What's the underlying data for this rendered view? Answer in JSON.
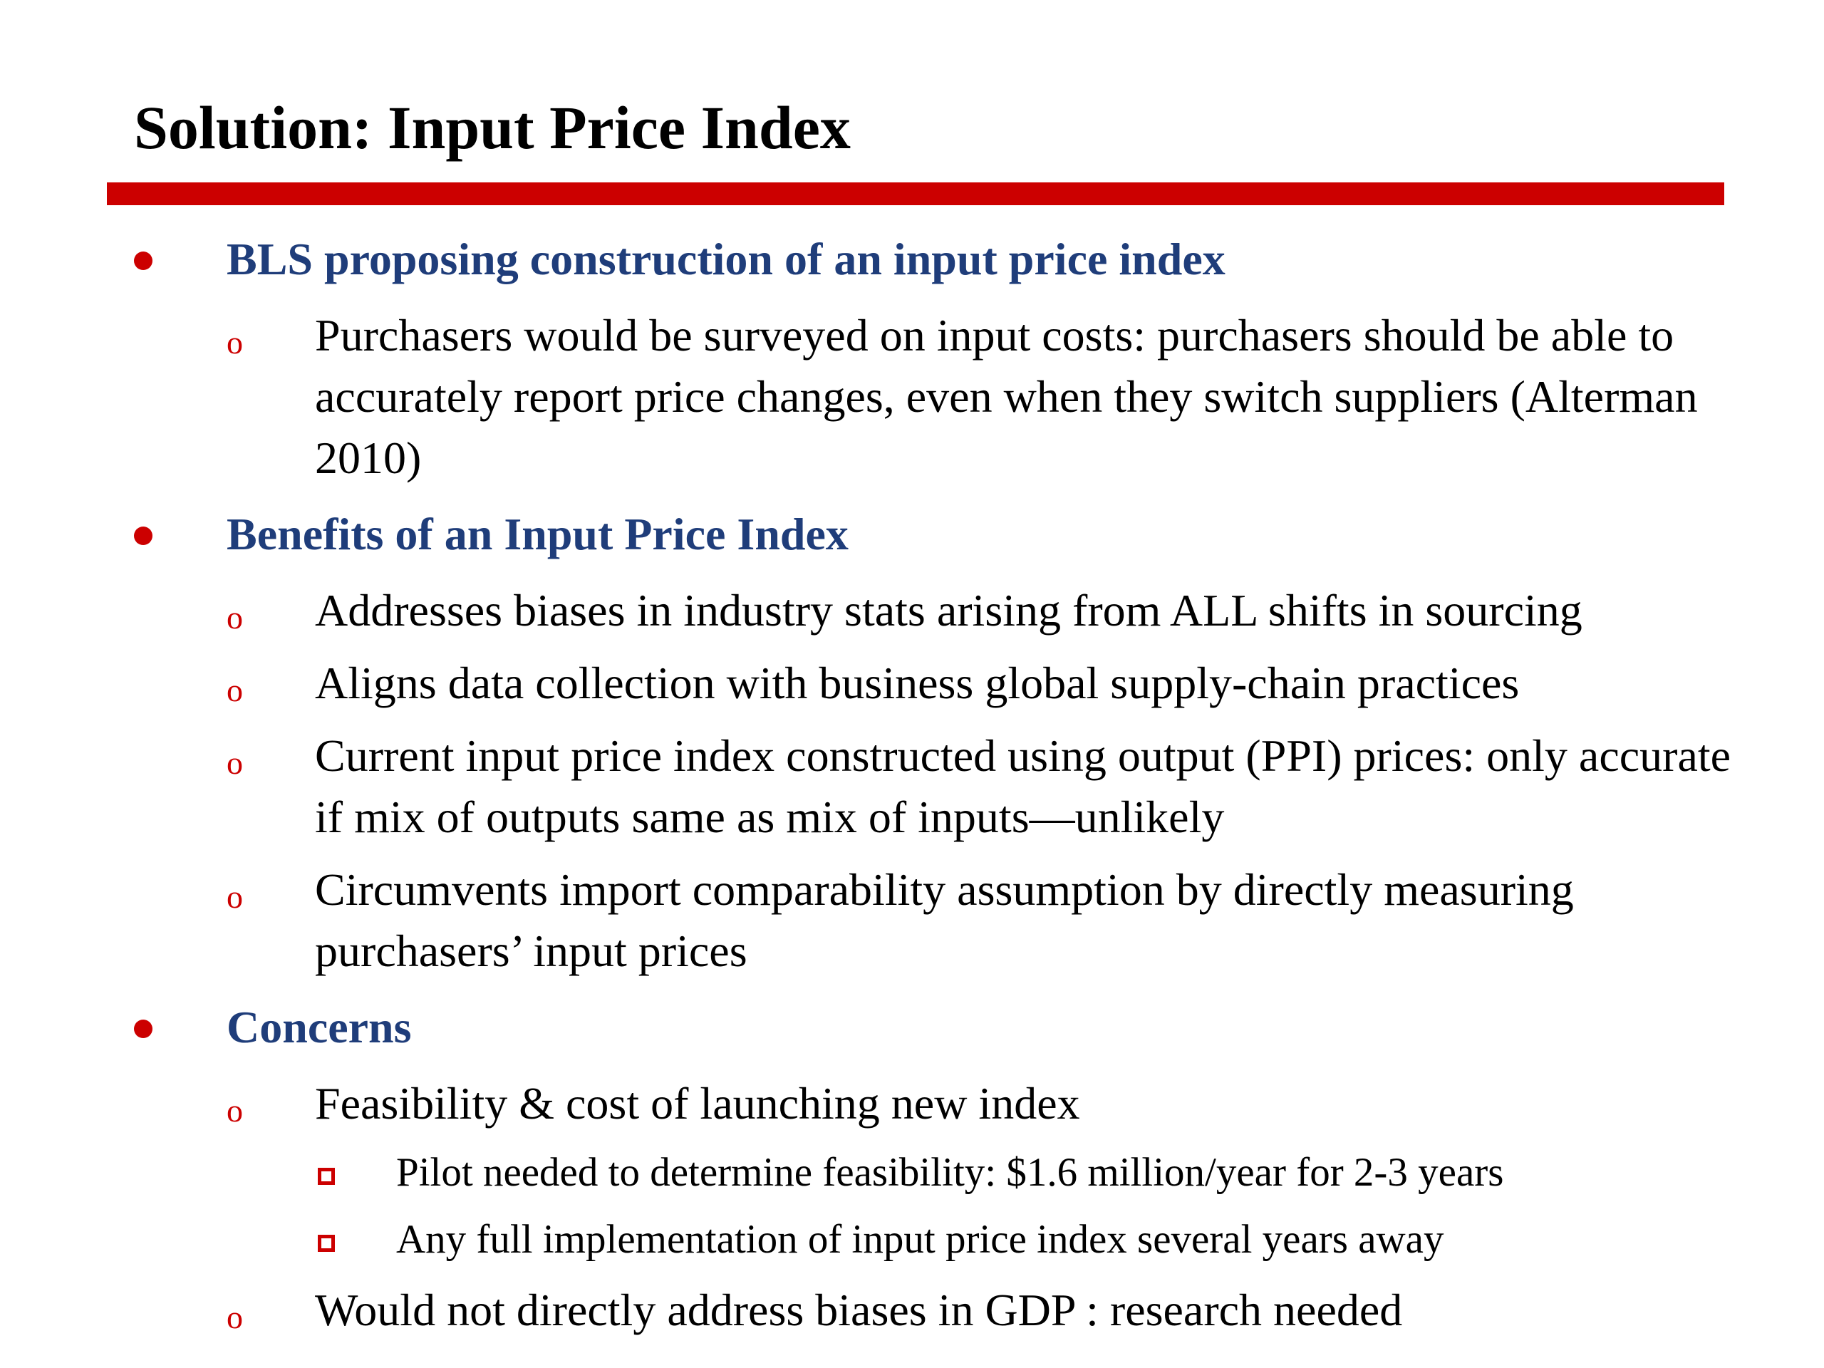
{
  "slide": {
    "title": "Solution: Input Price Index",
    "accent_color": "#cc0000",
    "heading_color": "#1f3d7a"
  },
  "bullets": {
    "b1": {
      "text": "BLS proposing construction of an input price index",
      "subs": [
        {
          "marker": "o",
          "text": "Purchasers would be surveyed on input costs: purchasers should be able to accurately report price changes, even when they switch suppliers (Alterman 2010)"
        }
      ]
    },
    "b2": {
      "text": "Benefits of an Input Price Index",
      "subs": [
        {
          "marker": "o",
          "text": "Addresses biases in industry stats arising from ALL shifts in sourcing"
        },
        {
          "marker": "o",
          "text": "Aligns data collection with business global supply-chain practices"
        },
        {
          "marker": "o",
          "text": "Current input price index constructed using output (PPI) prices: only accurate if mix of outputs same as mix of inputs—unlikely"
        },
        {
          "marker": "o",
          "text": "Circumvents import comparability assumption by directly measuring purchasers’ input prices"
        }
      ]
    },
    "b3": {
      "text": "Concerns",
      "subs": [
        {
          "marker": "o",
          "text": "Feasibility & cost of launching new index"
        },
        {
          "marker": "o",
          "text": "Would not directly address biases in GDP : research needed"
        }
      ],
      "subsubs": [
        {
          "text": "Pilot needed to determine feasibility: $1.6 million/year for 2-3 years"
        },
        {
          "text": "Any full implementation of input price index several years away"
        }
      ]
    }
  }
}
